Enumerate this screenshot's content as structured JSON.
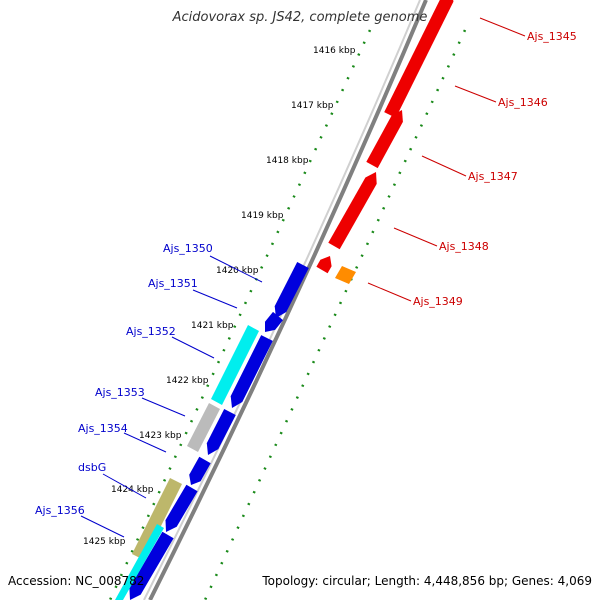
{
  "title": "Acidovorax sp. JS42, complete genome",
  "accession": "Accession: NC_008782",
  "summary": "Topology: circular; Length: 4,448,856 bp; Genes: 4,069",
  "colors": {
    "background": "#ffffff",
    "backbone": "#808080",
    "tick_dots": "#1a8a1a",
    "forward_gene": "#ee0000",
    "reverse_gene": "#0000dd",
    "cyan_gene": "#00eeee",
    "gray_gene": "#bbbbbb",
    "khaki_gene": "#bdb76b",
    "orange_gene": "#ff8c00",
    "forward_label": "#cc0000",
    "reverse_label": "#0000cc",
    "kbp_label": "#000000"
  },
  "kbp_ticks": [
    "1416 kbp",
    "1417 kbp",
    "1418 kbp",
    "1419 kbp",
    "1420 kbp",
    "1421 kbp",
    "1422 kbp",
    "1423 kbp",
    "1424 kbp",
    "1425 kbp"
  ],
  "forward_genes": [
    {
      "label": "Ajs_1345",
      "color": "#ee0000"
    },
    {
      "label": "Ajs_1346",
      "color": "#ee0000"
    },
    {
      "label": "Ajs_1347",
      "color": "#ee0000"
    },
    {
      "label": "Ajs_1348",
      "color": "#ee0000"
    },
    {
      "label": "Ajs_1349",
      "color": "#ff8c00"
    }
  ],
  "reverse_genes": [
    {
      "label": "Ajs_1350",
      "color": "#0000dd"
    },
    {
      "label": "Ajs_1351",
      "color": "#0000dd"
    },
    {
      "label": "Ajs_1352",
      "color": "#00eeee"
    },
    {
      "label": "Ajs_1353",
      "color": "#bbbbbb"
    },
    {
      "label": "Ajs_1354",
      "color": "#0000dd"
    },
    {
      "label": "dsbG",
      "color": "#bdb76b"
    },
    {
      "label": "Ajs_1356",
      "color": "#00eeee"
    }
  ]
}
